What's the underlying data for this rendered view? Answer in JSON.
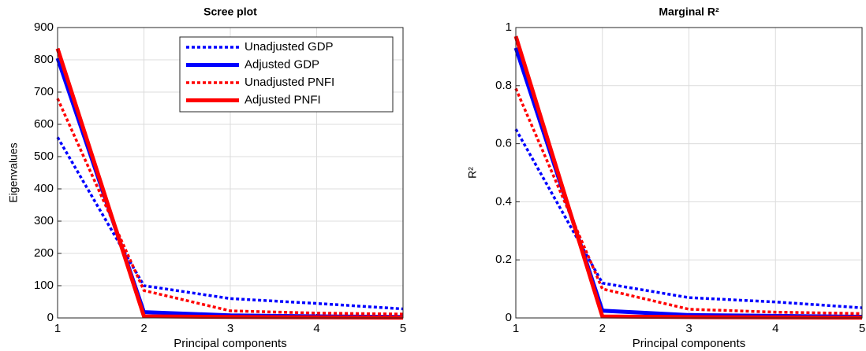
{
  "chart_data": [
    {
      "type": "line",
      "title": "Scree plot",
      "x_label": "Principal components",
      "y_label": "Eigenvalues",
      "x": [
        1,
        2,
        3,
        4,
        5
      ],
      "xlim": [
        1,
        5
      ],
      "xticks": [
        1,
        2,
        3,
        4,
        5
      ],
      "ylim": [
        0,
        900
      ],
      "yticks": [
        0,
        100,
        200,
        300,
        400,
        500,
        600,
        700,
        800,
        900
      ],
      "grid": true,
      "legend": "top-right",
      "series": [
        {
          "name": "Unadjusted GDP",
          "color": "#0000ff",
          "dash": true,
          "values": [
            560,
            100,
            60,
            45,
            28
          ]
        },
        {
          "name": "Adjusted GDP",
          "color": "#0000ff",
          "dash": false,
          "values": [
            805,
            18,
            8,
            5,
            3
          ]
        },
        {
          "name": "Unadjusted PNFI",
          "color": "#ff0000",
          "dash": true,
          "values": [
            680,
            85,
            22,
            15,
            12
          ]
        },
        {
          "name": "Adjusted PNFI",
          "color": "#ff0000",
          "dash": false,
          "values": [
            835,
            5,
            3,
            2,
            1
          ]
        }
      ]
    },
    {
      "type": "line",
      "title": "Marginal R²",
      "x_label": "Principal components",
      "y_label": "R²",
      "x": [
        1,
        2,
        3,
        4,
        5
      ],
      "xlim": [
        1,
        5
      ],
      "xticks": [
        1,
        2,
        3,
        4,
        5
      ],
      "ylim": [
        0,
        1
      ],
      "yticks": [
        0,
        0.2,
        0.4,
        0.6,
        0.8,
        1
      ],
      "grid": true,
      "series": [
        {
          "color": "#0000ff",
          "dash": true,
          "values": [
            0.65,
            0.12,
            0.07,
            0.055,
            0.035
          ]
        },
        {
          "color": "#0000ff",
          "dash": false,
          "values": [
            0.93,
            0.025,
            0.01,
            0.007,
            0.004
          ]
        },
        {
          "color": "#ff0000",
          "dash": true,
          "values": [
            0.79,
            0.1,
            0.03,
            0.02,
            0.015
          ]
        },
        {
          "color": "#ff0000",
          "dash": false,
          "values": [
            0.97,
            0.005,
            0.003,
            0.002,
            0.001
          ]
        }
      ]
    }
  ]
}
